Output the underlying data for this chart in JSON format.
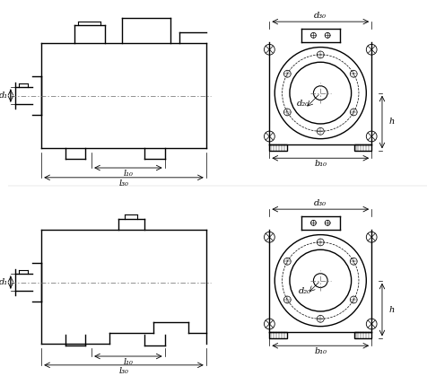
{
  "bg_color": "#ffffff",
  "line_color": "#000000",
  "dash_color": "#555555",
  "fig_width": 4.77,
  "fig_height": 4.19,
  "dpi": 100,
  "labels": {
    "d1": "d₁",
    "d20": "d₂₀",
    "d30": "d₃₀",
    "l10": "l₁₀",
    "l30": "l₃₀",
    "b10": "b₁₀",
    "h": "h"
  }
}
